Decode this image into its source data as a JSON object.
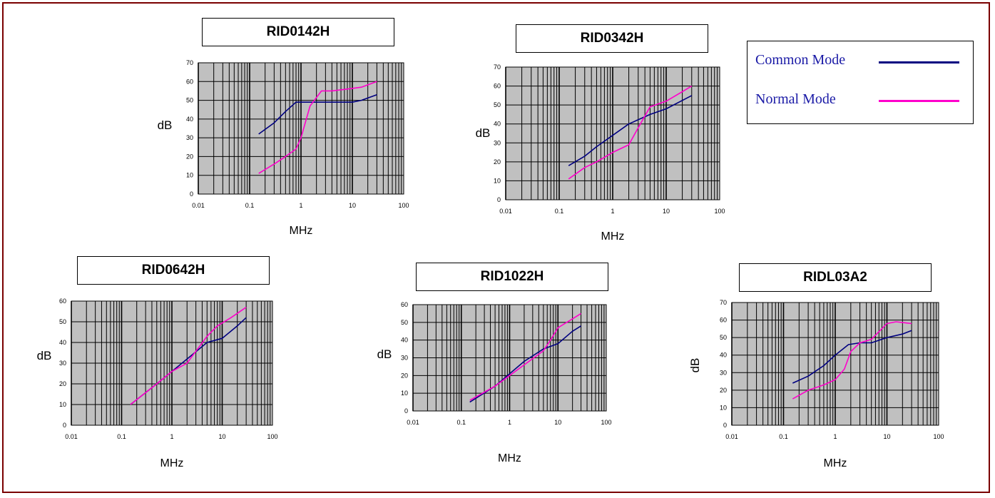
{
  "colors": {
    "frame": "#7a0000",
    "plot_bg": "#c0c0c0",
    "grid": "#000000",
    "common": "#000080",
    "normal": "#ff00cc",
    "legend_text": "#1a1aa6"
  },
  "legend": {
    "items": [
      {
        "label": "Common Mode",
        "color": "#000080"
      },
      {
        "label": "Normal Mode",
        "color": "#ff00cc"
      }
    ]
  },
  "chart_data": [
    {
      "type": "line",
      "title": "RID0142H",
      "xlabel": "MHz",
      "ylabel": "dB",
      "x_scale": "log",
      "xlim": [
        0.01,
        100
      ],
      "xticks": [
        "0.01",
        "0.1",
        "1",
        "10",
        "100"
      ],
      "ylim": [
        0,
        70
      ],
      "yticks": [
        0,
        10,
        20,
        30,
        40,
        50,
        60,
        70
      ],
      "grid": true,
      "series": [
        {
          "name": "Common Mode",
          "color": "#000080",
          "x": [
            0.15,
            0.3,
            0.5,
            0.8,
            1,
            2,
            5,
            10,
            15,
            30
          ],
          "y": [
            32,
            38,
            44,
            49,
            49,
            49,
            49,
            49,
            50,
            53
          ]
        },
        {
          "name": "Normal Mode",
          "color": "#ff00cc",
          "x": [
            0.15,
            0.3,
            0.5,
            0.8,
            1,
            1.5,
            2.5,
            4,
            8,
            15,
            30
          ],
          "y": [
            11,
            16,
            20,
            24,
            30,
            47,
            55,
            55,
            56,
            57,
            60
          ]
        }
      ]
    },
    {
      "type": "line",
      "title": "RID0342H",
      "xlabel": "MHz",
      "ylabel": "dB",
      "x_scale": "log",
      "xlim": [
        0.01,
        100
      ],
      "xticks": [
        "0.01",
        "0.1",
        "1",
        "10",
        "100"
      ],
      "ylim": [
        0,
        70
      ],
      "yticks": [
        0,
        10,
        20,
        30,
        40,
        50,
        60,
        70
      ],
      "grid": true,
      "series": [
        {
          "name": "Common Mode",
          "color": "#000080",
          "x": [
            0.15,
            0.3,
            0.5,
            1,
            2,
            5,
            10,
            30
          ],
          "y": [
            18,
            23,
            28,
            34,
            40,
            45,
            48,
            55
          ]
        },
        {
          "name": "Normal Mode",
          "color": "#ff00cc",
          "x": [
            0.15,
            0.3,
            0.5,
            1,
            2,
            3,
            5,
            10,
            20,
            30
          ],
          "y": [
            11,
            17,
            20,
            25,
            29,
            38,
            49,
            52,
            57,
            60
          ]
        }
      ]
    },
    {
      "type": "line",
      "title": "RID0642H",
      "xlabel": "MHz",
      "ylabel": "dB",
      "x_scale": "log",
      "xlim": [
        0.01,
        100
      ],
      "xticks": [
        "0.01",
        "0.1",
        "1",
        "10",
        "100"
      ],
      "ylim": [
        0,
        60
      ],
      "yticks": [
        0,
        10,
        20,
        30,
        40,
        50,
        60
      ],
      "grid": true,
      "series": [
        {
          "name": "Common Mode",
          "color": "#000080",
          "x": [
            0.15,
            0.5,
            1,
            2,
            5,
            10,
            20,
            30
          ],
          "y": [
            10,
            20,
            26,
            32,
            40,
            42,
            48,
            52
          ]
        },
        {
          "name": "Normal Mode",
          "color": "#ff00cc",
          "x": [
            0.15,
            0.5,
            1,
            2,
            5,
            8,
            15,
            30
          ],
          "y": [
            10,
            20,
            26,
            30,
            43,
            48,
            52,
            57
          ]
        }
      ]
    },
    {
      "type": "line",
      "title": "RID1022H",
      "xlabel": "MHz",
      "ylabel": "dB",
      "x_scale": "log",
      "xlim": [
        0.01,
        100
      ],
      "xticks": [
        "0.01",
        "0.1",
        "1",
        "10",
        "100"
      ],
      "ylim": [
        0,
        60
      ],
      "yticks": [
        0,
        10,
        20,
        30,
        40,
        50,
        60
      ],
      "grid": true,
      "series": [
        {
          "name": "Common Mode",
          "color": "#000080",
          "x": [
            0.15,
            0.5,
            1,
            2,
            5,
            10,
            20,
            30
          ],
          "y": [
            5,
            14,
            21,
            28,
            35,
            38,
            45,
            48
          ]
        },
        {
          "name": "Normal Mode",
          "color": "#ff00cc",
          "x": [
            0.15,
            0.5,
            1,
            2,
            5,
            7,
            10,
            20,
            30
          ],
          "y": [
            6,
            14,
            20,
            26,
            34,
            40,
            47,
            52,
            55
          ]
        }
      ]
    },
    {
      "type": "line",
      "title": "RIDL03A2",
      "xlabel": "MHz",
      "ylabel": "dB",
      "x_scale": "log",
      "xlim": [
        0.01,
        100
      ],
      "xticks": [
        "0.01",
        "0.1",
        "1",
        "10",
        "100"
      ],
      "ylim": [
        0,
        70
      ],
      "yticks": [
        0,
        10,
        20,
        30,
        40,
        50,
        60,
        70
      ],
      "grid": true,
      "series": [
        {
          "name": "Common Mode",
          "color": "#000080",
          "x": [
            0.15,
            0.3,
            0.6,
            1,
            1.8,
            3,
            5,
            10,
            20,
            30
          ],
          "y": [
            24,
            28,
            34,
            40,
            46,
            47,
            47,
            50,
            52,
            54
          ]
        },
        {
          "name": "Normal Mode",
          "color": "#ff00cc",
          "x": [
            0.15,
            0.3,
            0.6,
            1,
            1.5,
            2,
            3,
            5,
            10,
            15,
            30
          ],
          "y": [
            15,
            20,
            23,
            26,
            32,
            42,
            47,
            49,
            58,
            59,
            58
          ]
        }
      ]
    }
  ]
}
